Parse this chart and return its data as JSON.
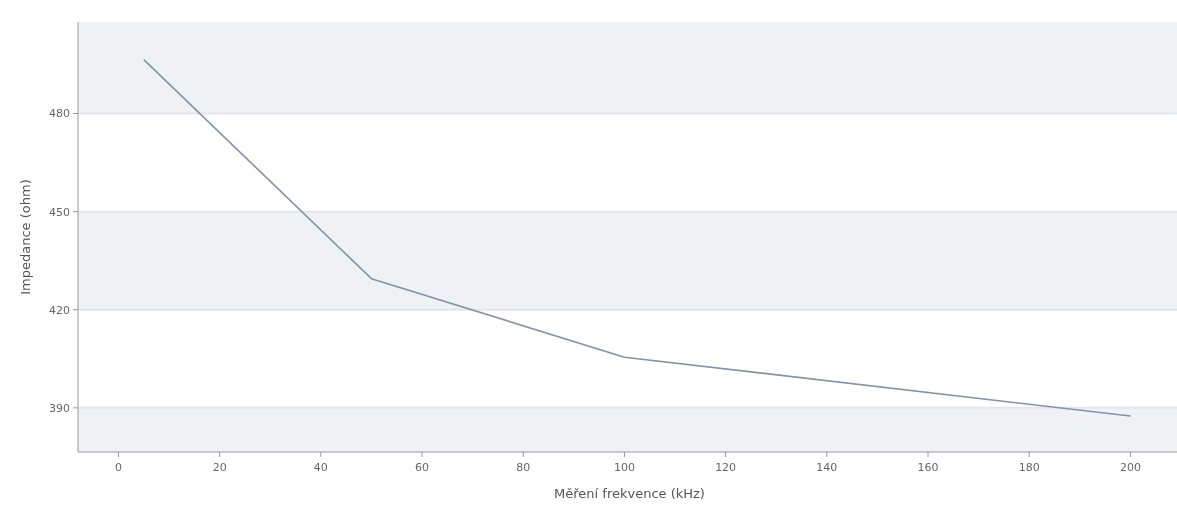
{
  "chart_data": {
    "type": "line",
    "xlabel": "Měření frekvence (kHz)",
    "ylabel": "Impedance (ohm)",
    "x": [
      5,
      50,
      100,
      200
    ],
    "series": [
      {
        "color": "#7f93b0",
        "values": [
          496.5,
          429.5,
          405.5,
          387.5
        ]
      }
    ],
    "xlim": [
      -8,
      210
    ],
    "ylim": [
      376.5,
      508
    ],
    "xticks": [
      0,
      20,
      40,
      60,
      80,
      100,
      120,
      140,
      160,
      180,
      200
    ],
    "yticks": [
      390,
      420,
      450,
      480
    ],
    "grid": "y",
    "marker": "none",
    "line_style": "solid"
  }
}
